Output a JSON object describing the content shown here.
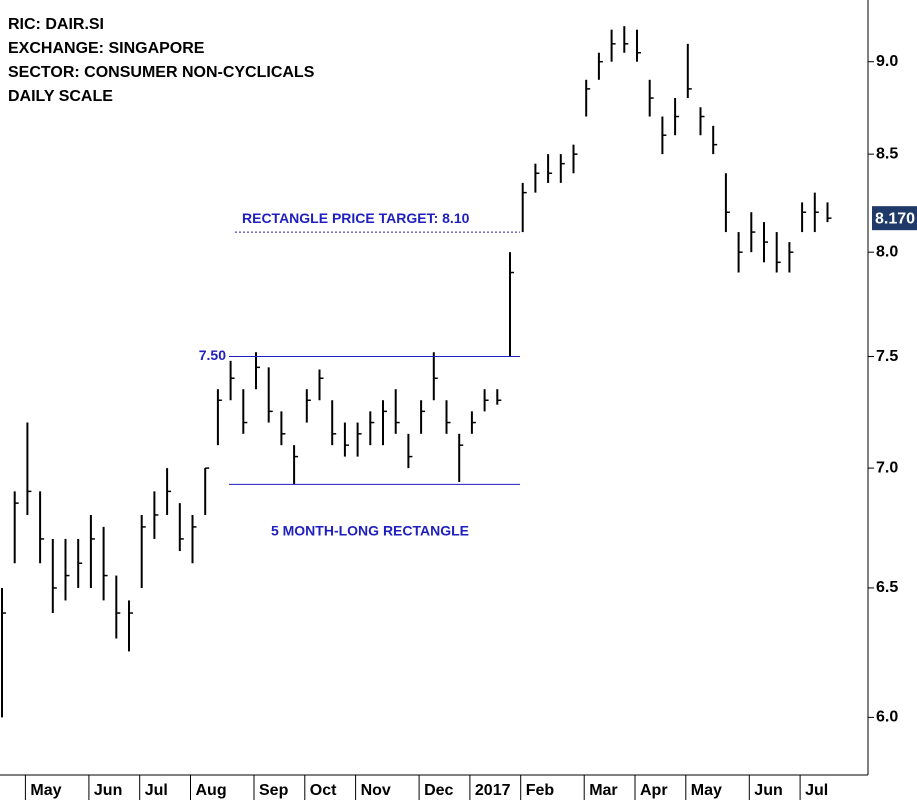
{
  "chart_data": {
    "type": "hlc",
    "header_lines": [
      "RIC: DAIR.SI",
      "EXCHANGE: SINGAPORE",
      "SECTOR: CONSUMER NON-CYCLICALS",
      "DAILY SCALE"
    ],
    "categories": [
      null,
      null,
      "May",
      null,
      null,
      null,
      null,
      "Jun",
      null,
      null,
      null,
      "Jul",
      null,
      null,
      null,
      "Aug",
      null,
      null,
      null,
      null,
      "Sep",
      null,
      null,
      null,
      "Oct",
      null,
      null,
      null,
      "Nov",
      null,
      null,
      null,
      null,
      "Dec",
      null,
      null,
      null,
      "2017",
      null,
      null,
      null,
      "Feb",
      null,
      null,
      null,
      null,
      "Mar",
      null,
      null,
      null,
      "Apr",
      null,
      null,
      null,
      "May",
      null,
      null,
      null,
      null,
      "Jun",
      null,
      null,
      null,
      "Jul",
      null,
      null
    ],
    "high": [
      6.5,
      6.9,
      7.2,
      6.9,
      6.7,
      6.7,
      6.7,
      6.8,
      6.75,
      6.55,
      6.45,
      6.8,
      6.9,
      7.0,
      6.85,
      6.8,
      7.0,
      7.35,
      7.48,
      7.35,
      7.52,
      7.45,
      7.25,
      7.1,
      7.35,
      7.44,
      7.3,
      7.2,
      7.2,
      7.25,
      7.3,
      7.35,
      7.15,
      7.3,
      7.52,
      7.3,
      7.15,
      7.25,
      7.35,
      7.35,
      8.0,
      8.35,
      8.45,
      8.5,
      8.5,
      8.55,
      8.9,
      9.05,
      9.18,
      9.2,
      9.18,
      8.9,
      8.7,
      8.8,
      9.1,
      8.75,
      8.65,
      8.4,
      8.1,
      8.2,
      8.15,
      8.1,
      8.05,
      8.25,
      8.3,
      8.25
    ],
    "low": [
      6.0,
      6.6,
      6.8,
      6.6,
      6.4,
      6.45,
      6.5,
      6.5,
      6.45,
      6.3,
      6.25,
      6.5,
      6.7,
      6.8,
      6.65,
      6.6,
      6.8,
      7.1,
      7.3,
      7.15,
      7.35,
      7.2,
      7.1,
      6.93,
      7.2,
      7.3,
      7.1,
      7.05,
      7.05,
      7.1,
      7.1,
      7.15,
      7.0,
      7.15,
      7.3,
      7.15,
      6.94,
      7.15,
      7.25,
      7.28,
      7.5,
      8.1,
      8.3,
      8.35,
      8.35,
      8.4,
      8.7,
      8.9,
      9.0,
      9.05,
      9.0,
      8.7,
      8.5,
      8.6,
      8.8,
      8.6,
      8.5,
      8.1,
      7.9,
      8.0,
      7.95,
      7.9,
      7.9,
      8.1,
      8.1,
      8.15
    ],
    "values": [
      6.4,
      6.85,
      6.9,
      6.7,
      6.5,
      6.55,
      6.6,
      6.7,
      6.55,
      6.4,
      6.4,
      6.75,
      6.8,
      6.9,
      6.7,
      6.75,
      7.0,
      7.3,
      7.4,
      7.2,
      7.45,
      7.25,
      7.15,
      7.05,
      7.3,
      7.4,
      7.15,
      7.1,
      7.15,
      7.2,
      7.25,
      7.2,
      7.05,
      7.25,
      7.4,
      7.2,
      7.1,
      7.2,
      7.3,
      7.3,
      7.9,
      8.3,
      8.4,
      8.4,
      8.45,
      8.5,
      8.85,
      9.0,
      9.1,
      9.1,
      9.05,
      8.8,
      8.6,
      8.7,
      8.85,
      8.7,
      8.55,
      8.2,
      8.0,
      8.1,
      8.05,
      7.95,
      8.0,
      8.2,
      8.2,
      8.17
    ],
    "color": "#000000",
    "last_price": {
      "value": 8.17,
      "label": "8.170"
    },
    "log_scale": true,
    "ylim": [
      5.79,
      9.35
    ],
    "yticks": [
      {
        "value": 6,
        "label": "6.0"
      },
      {
        "value": 6.5,
        "label": "6.5"
      },
      {
        "value": 7,
        "label": "7.0"
      },
      {
        "value": 7.5,
        "label": "7.5"
      },
      {
        "value": 8,
        "label": "8.0"
      },
      {
        "value": 8.5,
        "label": "8.5"
      },
      {
        "value": 9,
        "label": "9.0"
      }
    ],
    "levels": [
      {
        "value": 8.1,
        "label": "RECTANGLE PRICE TARGET: 8.10",
        "style": "dotted"
      },
      {
        "value": 7.5,
        "label": "7.50",
        "style": "solid"
      },
      {
        "value": 6.93,
        "style": "solid"
      }
    ],
    "annotation": "5 MONTH-LONG RECTANGLE"
  }
}
